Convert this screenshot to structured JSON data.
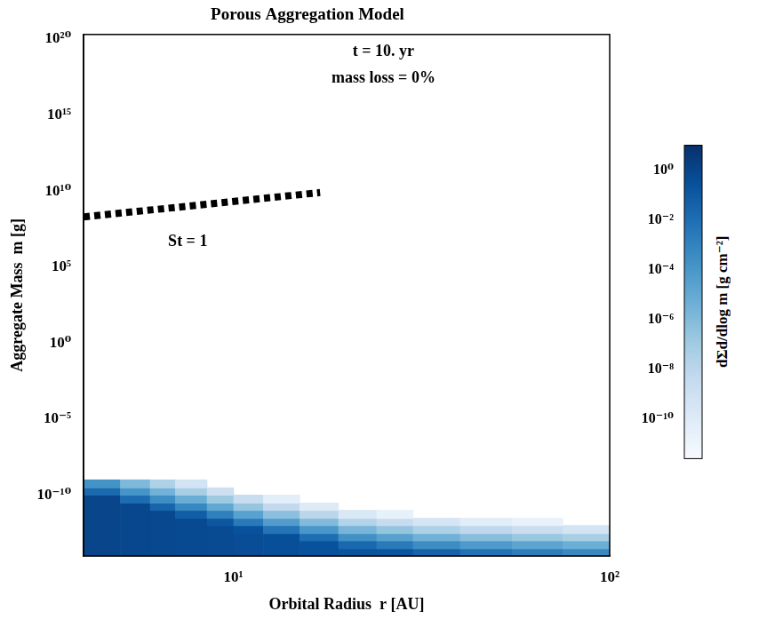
{
  "chart_data": {
    "type": "heatmap",
    "title": "Porous Aggregation Model",
    "x_label": "Orbital Radius  r [AU]",
    "y_label": "Aggregate Mass  m [g]",
    "log": true,
    "grid": false,
    "xlim": [
      4,
      100
    ],
    "xticks": [
      {
        "value": 10,
        "label": "10¹"
      },
      {
        "value": 100,
        "label": "10²"
      }
    ],
    "ylim": [
      1e-14,
      2e+20
    ],
    "yticks": [
      {
        "value": 1e-10,
        "label": "10⁻¹⁰"
      },
      {
        "value": 1e-05,
        "label": "10⁻⁵"
      },
      {
        "value": 1,
        "label": "10⁰"
      },
      {
        "value": 100000.0,
        "label": "10⁵"
      },
      {
        "value": 10000000000.0,
        "label": "10¹⁰"
      },
      {
        "value": 1000000000000000.0,
        "label": "10¹⁵"
      },
      {
        "value": 1e+20,
        "label": "10²⁰"
      }
    ],
    "annotations": [
      "t = 10. yr",
      "mass loss = 0%"
    ],
    "series": [
      {
        "name": "St = 1",
        "color": "#000000",
        "line_style": "dotted",
        "x": [
          4,
          17
        ],
        "values": [
          200000000.0,
          8000000000.0
        ]
      }
    ],
    "heatmap": {
      "x_edges": [
        4,
        5,
        6,
        7,
        8.5,
        10,
        12,
        15,
        19,
        24,
        30,
        40,
        55,
        75,
        100
      ],
      "y_edges": [
        1e-14,
        3e-14,
        1e-13,
        3e-13,
        1e-12,
        3e-12,
        1e-11,
        3e-11,
        1e-10,
        3e-10,
        1e-09
      ],
      "cells": [
        [
          1,
          0.8,
          0.7,
          0.6,
          0.5,
          0.4,
          0.33,
          0.26,
          0.2,
          0.17,
          0.033,
          0.0063,
          0.0018,
          0.0005
        ],
        [
          1,
          0.8,
          0.7,
          0.6,
          0.5,
          0.4,
          0.33,
          0.26,
          0.02,
          0.0027,
          0.00033,
          6.3e-05,
          1.8e-05,
          5e-06
        ],
        [
          1,
          0.8,
          0.7,
          0.6,
          0.5,
          0.4,
          0.33,
          0.01,
          0.0002,
          2.7e-05,
          3.3e-06,
          6.3e-07,
          1.8e-07,
          5e-08
        ],
        [
          1,
          0.8,
          0.7,
          0.6,
          0.5,
          0.25,
          0.0052,
          0.0001,
          2e-06,
          2.7e-07,
          3.3e-08,
          6.3e-09,
          1.8e-09,
          5e-10
        ],
        [
          1,
          0.8,
          0.7,
          0.6,
          0.13,
          0.0025,
          5.2e-05,
          1e-06,
          2e-08,
          2.7e-09,
          3.3e-10,
          6.3e-11,
          1.8e-11,
          0
        ],
        [
          1,
          0.8,
          0.7,
          0.06,
          0.0013,
          2.5e-05,
          5.2e-07,
          1e-08,
          2e-10,
          2.7e-11,
          0,
          0,
          0,
          0
        ],
        [
          1,
          0.8,
          0.028,
          0.0006,
          1.3e-05,
          2.5e-07,
          5.2e-09,
          1e-10,
          0,
          0,
          0,
          0,
          0,
          0
        ],
        [
          1,
          0.013,
          0.00028,
          6e-06,
          1.3e-07,
          2.5e-09,
          5.2e-11,
          0,
          0,
          0,
          0,
          0,
          0,
          0
        ],
        [
          0.016,
          0.00013,
          2.8e-06,
          6e-08,
          1.3e-09,
          0,
          0,
          0,
          0,
          0,
          0,
          0,
          0,
          0
        ],
        [
          0.00016,
          1.3e-06,
          2.8e-08,
          6e-10,
          0,
          0,
          0,
          0,
          0,
          0,
          0,
          0,
          0,
          0
        ]
      ]
    },
    "colorbar": {
      "label": "dΣd/dlog m [g cm⁻²]",
      "range": [
        2.5e-12,
        10
      ],
      "ticks": [
        {
          "value": 1,
          "label": "10⁰"
        },
        {
          "value": 0.01,
          "label": "10⁻²"
        },
        {
          "value": 0.0001,
          "label": "10⁻⁴"
        },
        {
          "value": 1e-06,
          "label": "10⁻⁶"
        },
        {
          "value": 1e-08,
          "label": "10⁻⁸"
        },
        {
          "value": 1e-10,
          "label": "10⁻¹⁰"
        }
      ]
    }
  }
}
